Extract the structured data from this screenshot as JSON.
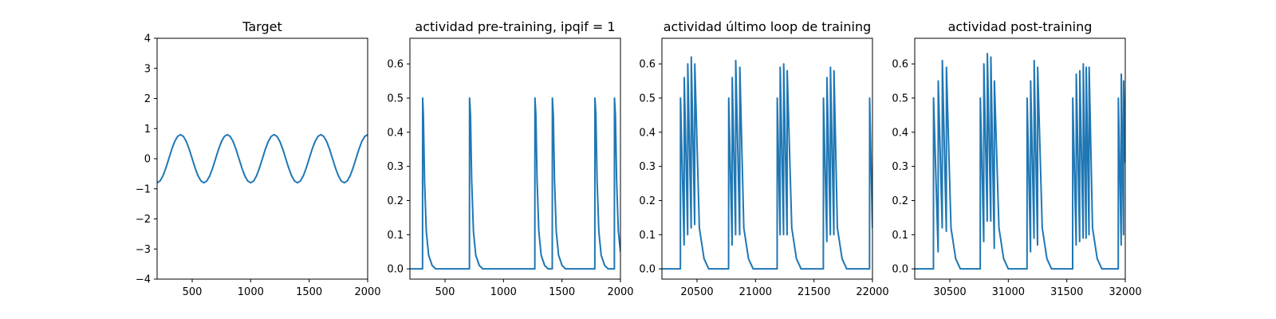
{
  "colors": {
    "series": "#1f77b4",
    "axes": "#000000",
    "background": "#ffffff"
  },
  "chart_data": [
    {
      "type": "line",
      "title": "Target",
      "xlim": [
        200,
        2000
      ],
      "ylim": [
        -4,
        4
      ],
      "xticks": [
        500,
        1000,
        1500,
        2000
      ],
      "yticks": [
        -4,
        -3,
        -2,
        -1,
        0,
        1,
        2,
        3,
        4
      ],
      "x": [
        200,
        225,
        250,
        275,
        300,
        325,
        350,
        375,
        400,
        425,
        450,
        475,
        500,
        525,
        550,
        575,
        600,
        625,
        650,
        675,
        700,
        725,
        750,
        775,
        800,
        825,
        850,
        875,
        900,
        925,
        950,
        975,
        1000,
        1025,
        1050,
        1075,
        1100,
        1125,
        1150,
        1175,
        1200,
        1225,
        1250,
        1275,
        1300,
        1325,
        1350,
        1375,
        1400,
        1425,
        1450,
        1475,
        1500,
        1525,
        1550,
        1575,
        1600,
        1625,
        1650,
        1675,
        1700,
        1725,
        1750,
        1775,
        1800,
        1825,
        1850,
        1875,
        1900,
        1925,
        1950,
        1975,
        2000
      ],
      "series": [
        {
          "values": [
            -0.8,
            -0.74,
            -0.57,
            -0.31,
            0.0,
            0.31,
            0.57,
            0.74,
            0.8,
            0.74,
            0.57,
            0.31,
            0.0,
            -0.31,
            -0.57,
            -0.74,
            -0.8,
            -0.74,
            -0.57,
            -0.31,
            0.0,
            0.31,
            0.57,
            0.74,
            0.8,
            0.74,
            0.57,
            0.31,
            0.0,
            -0.31,
            -0.57,
            -0.74,
            -0.8,
            -0.74,
            -0.57,
            -0.31,
            0.0,
            0.31,
            0.57,
            0.74,
            0.8,
            0.74,
            0.57,
            0.31,
            0.0,
            -0.31,
            -0.57,
            -0.74,
            -0.8,
            -0.74,
            -0.57,
            -0.31,
            0.0,
            0.31,
            0.57,
            0.74,
            0.8,
            0.74,
            0.57,
            0.31,
            0.0,
            -0.31,
            -0.57,
            -0.74,
            -0.8,
            -0.74,
            -0.57,
            -0.31,
            0.0,
            0.31,
            0.57,
            0.74,
            0.8
          ]
        }
      ]
    },
    {
      "type": "line",
      "title": "actividad pre-training, ipqif = 1",
      "xlim": [
        200,
        2000
      ],
      "ylim": [
        -0.03,
        0.675
      ],
      "xticks": [
        500,
        1000,
        1500,
        2000
      ],
      "yticks": [
        0.0,
        0.1,
        0.2,
        0.3,
        0.4,
        0.5,
        0.6
      ],
      "x": [
        200,
        308,
        309,
        315,
        325,
        340,
        360,
        390,
        420,
        709,
        710,
        718,
        728,
        743,
        763,
        793,
        823,
        1268,
        1269,
        1277,
        1287,
        1302,
        1322,
        1352,
        1382,
        1417,
        1418,
        1426,
        1436,
        1451,
        1471,
        1501,
        1531,
        1781,
        1782,
        1790,
        1800,
        1815,
        1835,
        1865,
        1895,
        1948,
        1949,
        1957,
        1967,
        1982,
        2000
      ],
      "series": [
        {
          "values": [
            0.0,
            0.0,
            0.5,
            0.45,
            0.26,
            0.11,
            0.04,
            0.01,
            0.0,
            0.0,
            0.5,
            0.45,
            0.26,
            0.11,
            0.04,
            0.01,
            0.0,
            0.0,
            0.5,
            0.45,
            0.26,
            0.11,
            0.04,
            0.01,
            0.0,
            0.0,
            0.5,
            0.45,
            0.26,
            0.11,
            0.04,
            0.01,
            0.0,
            0.0,
            0.5,
            0.45,
            0.26,
            0.11,
            0.04,
            0.01,
            0.0,
            0.0,
            0.5,
            0.45,
            0.26,
            0.11,
            0.05
          ]
        }
      ]
    },
    {
      "type": "line",
      "title": "actividad último loop de training",
      "xlim": [
        20200,
        22000
      ],
      "ylim": [
        -0.03,
        0.675
      ],
      "xticks": [
        20500,
        21000,
        21500,
        22000
      ],
      "yticks": [
        0.0,
        0.1,
        0.2,
        0.3,
        0.4,
        0.5,
        0.6
      ],
      "x": [
        20200,
        20358,
        20359,
        20390,
        20391,
        20420,
        20421,
        20450,
        20451,
        20480,
        20481,
        20520,
        20560,
        20600,
        20770,
        20771,
        20800,
        20801,
        20830,
        20831,
        20865,
        20866,
        20900,
        20940,
        20980,
        21185,
        21186,
        21210,
        21211,
        21240,
        21241,
        21270,
        21271,
        21310,
        21350,
        21390,
        21580,
        21581,
        21610,
        21611,
        21640,
        21641,
        21670,
        21671,
        21700,
        21740,
        21780,
        21975,
        21976,
        22000
      ],
      "series": [
        {
          "values": [
            0.0,
            0.0,
            0.5,
            0.07,
            0.56,
            0.1,
            0.6,
            0.12,
            0.62,
            0.13,
            0.6,
            0.12,
            0.03,
            0.0,
            0.0,
            0.5,
            0.07,
            0.56,
            0.1,
            0.61,
            0.1,
            0.59,
            0.12,
            0.03,
            0.0,
            0.0,
            0.5,
            0.1,
            0.59,
            0.1,
            0.6,
            0.1,
            0.58,
            0.12,
            0.03,
            0.0,
            0.0,
            0.5,
            0.08,
            0.56,
            0.1,
            0.59,
            0.1,
            0.58,
            0.12,
            0.03,
            0.0,
            0.0,
            0.5,
            0.12
          ]
        }
      ]
    },
    {
      "type": "line",
      "title": "actividad post-training",
      "xlim": [
        30200,
        32000
      ],
      "ylim": [
        -0.03,
        0.675
      ],
      "xticks": [
        30500,
        31000,
        31500,
        32000
      ],
      "yticks": [
        0.0,
        0.1,
        0.2,
        0.3,
        0.4,
        0.5,
        0.6
      ],
      "x": [
        30200,
        30360,
        30361,
        30400,
        30401,
        30435,
        30436,
        30470,
        30471,
        30510,
        30550,
        30590,
        30760,
        30761,
        30790,
        30791,
        30820,
        30821,
        30850,
        30851,
        30880,
        30881,
        30920,
        30960,
        31000,
        31160,
        31161,
        31190,
        31191,
        31220,
        31221,
        31250,
        31251,
        31290,
        31330,
        31370,
        31550,
        31551,
        31580,
        31581,
        31610,
        31611,
        31640,
        31641,
        31665,
        31666,
        31690,
        31691,
        31720,
        31760,
        31800,
        31940,
        31941,
        31965,
        31966,
        31985,
        31986,
        32000
      ],
      "series": [
        {
          "values": [
            0.0,
            0.0,
            0.5,
            0.05,
            0.55,
            0.12,
            0.61,
            0.11,
            0.59,
            0.12,
            0.03,
            0.0,
            0.0,
            0.5,
            0.08,
            0.6,
            0.14,
            0.63,
            0.14,
            0.62,
            0.06,
            0.55,
            0.12,
            0.03,
            0.0,
            0.0,
            0.5,
            0.05,
            0.55,
            0.09,
            0.61,
            0.07,
            0.59,
            0.12,
            0.03,
            0.0,
            0.0,
            0.5,
            0.07,
            0.57,
            0.08,
            0.58,
            0.09,
            0.6,
            0.09,
            0.59,
            0.1,
            0.59,
            0.12,
            0.03,
            0.0,
            0.0,
            0.5,
            0.07,
            0.57,
            0.1,
            0.55,
            0.31
          ]
        }
      ]
    }
  ]
}
